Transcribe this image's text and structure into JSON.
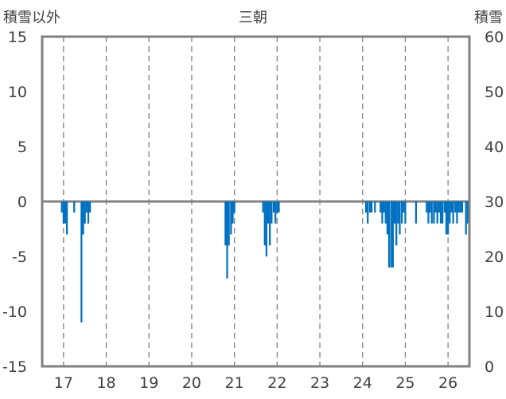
{
  "chart_data": {
    "type": "bar",
    "title": "三朝",
    "ylabel_left": "積雪以外",
    "ylabel_right": "積雪",
    "xlabel": "",
    "xlim": [
      16.5,
      26.5
    ],
    "ylim_left": [
      -15,
      15
    ],
    "ylim_right": [
      0,
      60
    ],
    "x_ticks": [
      17,
      18,
      19,
      20,
      21,
      22,
      23,
      24,
      25,
      26
    ],
    "y_ticks_left": [
      15,
      10,
      5,
      0,
      -5,
      -10,
      -15
    ],
    "y_ticks_right": [
      60,
      50,
      40,
      30,
      20,
      10,
      0
    ],
    "grid": true,
    "bar_color": "#0070c0",
    "series": [
      {
        "axis": "left",
        "x": [
          16.96,
          17.0,
          17.04,
          17.08,
          17.25,
          17.42,
          17.46,
          17.5,
          17.54,
          17.58,
          17.62,
          20.79,
          20.83,
          20.87,
          20.92,
          20.96,
          21.0,
          21.67,
          21.71,
          21.75,
          21.79,
          21.83,
          21.87,
          21.92,
          21.96,
          22.0,
          22.04,
          24.08,
          24.12,
          24.17,
          24.21,
          24.29,
          24.42,
          24.46,
          24.5,
          24.54,
          24.58,
          24.62,
          24.67,
          24.71,
          24.75,
          24.79,
          24.83,
          24.87,
          24.92,
          24.96,
          25.0,
          25.25,
          25.5,
          25.54,
          25.58,
          25.62,
          25.67,
          25.71,
          25.75,
          25.79,
          25.83,
          25.87,
          25.92,
          25.96,
          26.0,
          26.04,
          26.08,
          26.12,
          26.17,
          26.21,
          26.25,
          26.29,
          26.33,
          26.42,
          26.46
        ],
        "values": [
          -1,
          -2,
          -2,
          -3,
          -1,
          -11,
          -3,
          -2,
          -1,
          -2,
          -1,
          -4,
          -7,
          -4,
          -3,
          -2,
          -1,
          -1,
          -4,
          -5,
          -2,
          -4,
          -2,
          -1,
          -2,
          -1,
          -1,
          -1,
          -2,
          -1,
          -1,
          -1,
          -1,
          -2,
          -1,
          -2,
          -3,
          -6,
          -6,
          -6,
          -2,
          -4,
          -2,
          -3,
          -2,
          -1,
          -2,
          -2,
          -1,
          -2,
          -1,
          -2,
          -2,
          -1,
          -2,
          -1,
          -2,
          -2,
          -1,
          -3,
          -3,
          -2,
          -1,
          -2,
          -1,
          -2,
          -1,
          -1,
          -1,
          -3,
          -2
        ]
      }
    ]
  }
}
